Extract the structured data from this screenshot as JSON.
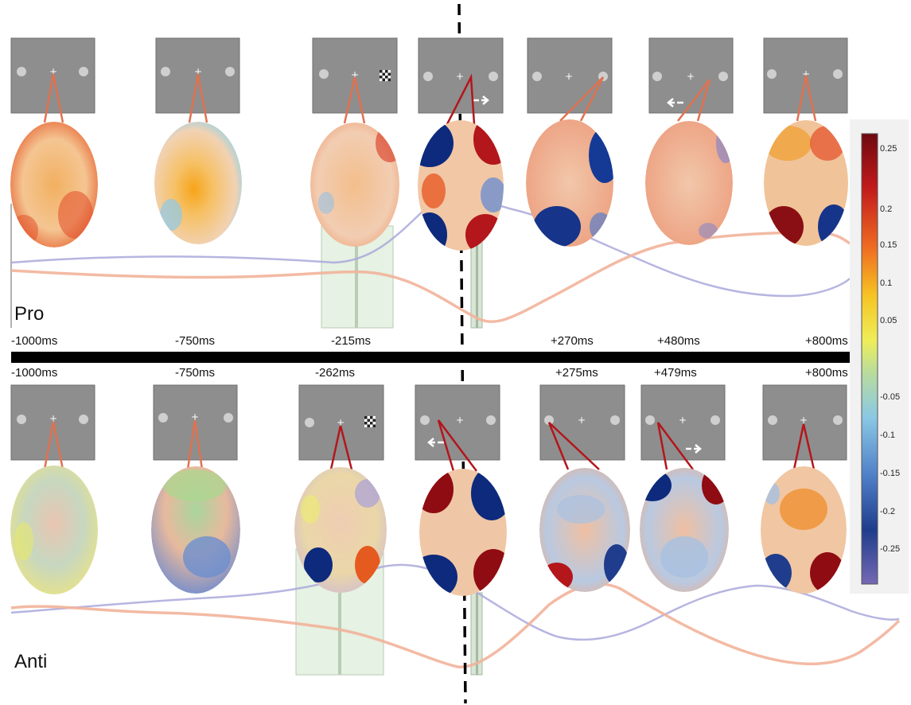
{
  "figure": {
    "row_labels": {
      "pro": "Pro",
      "anti": "Anti"
    },
    "pro_times": [
      "-1000ms",
      "-750ms",
      "-215ms",
      "+270ms",
      "+480ms",
      "+800ms"
    ],
    "anti_times": [
      "-1000ms",
      "-750ms",
      "-262ms",
      "+275ms",
      "+479ms",
      "+800ms"
    ],
    "colorbar_ticks": [
      "0.25",
      "0.2",
      "0.15",
      "0.1",
      "0.05",
      "-0.05",
      "-0.1",
      "-0.15",
      "-0.2",
      "-0.25"
    ],
    "colors": {
      "screen_gray": "#8e8e8e",
      "connector_orange": "#e0724f",
      "connector_red": "#b3161b",
      "trace_blue": "#a9a8dc",
      "trace_orange": "#f2b39a",
      "window_green": "#e6f2e3",
      "arrow": "#000000"
    }
  }
}
